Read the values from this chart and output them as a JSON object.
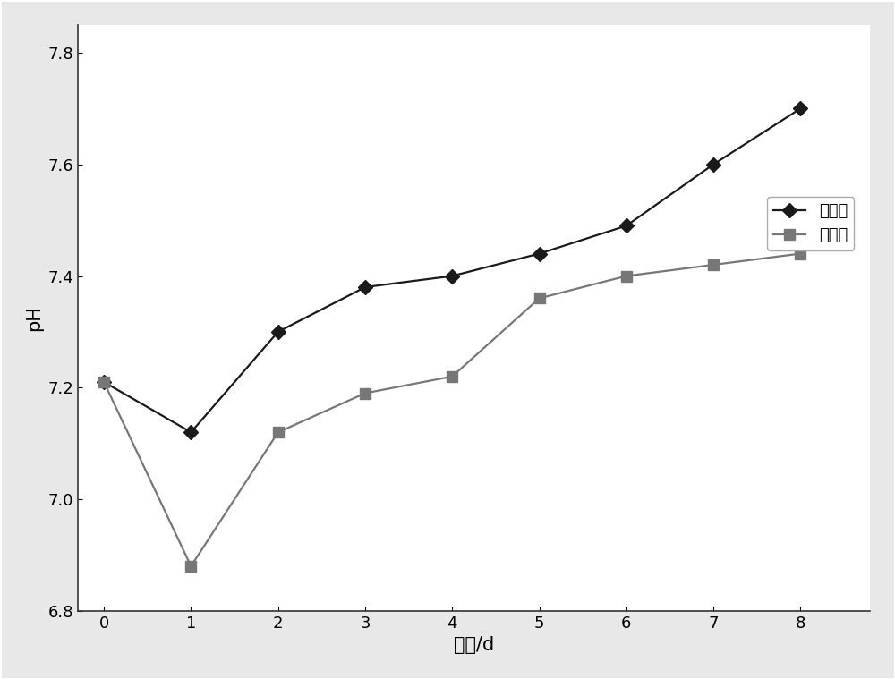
{
  "x": [
    0,
    1,
    2,
    3,
    4,
    5,
    6,
    7,
    8
  ],
  "control_y": [
    7.21,
    7.12,
    7.3,
    7.38,
    7.4,
    7.44,
    7.49,
    7.6,
    7.7
  ],
  "preserve_y": [
    7.21,
    6.88,
    7.12,
    7.19,
    7.22,
    7.36,
    7.4,
    7.42,
    7.44
  ],
  "xlabel": "时间/d",
  "ylabel": "pH",
  "xlim": [
    -0.3,
    8.8
  ],
  "ylim": [
    6.8,
    7.85
  ],
  "yticks": [
    6.8,
    7.0,
    7.2,
    7.4,
    7.6,
    7.8
  ],
  "xticks": [
    0,
    1,
    2,
    3,
    4,
    5,
    6,
    7,
    8
  ],
  "legend_labels": [
    "对照组",
    "保鲜组"
  ],
  "control_color": "#1a1a1a",
  "preserve_color": "#777777",
  "background_color": "#ffffff",
  "outer_background": "#e8e8e8",
  "axis_fontsize": 15,
  "tick_fontsize": 13,
  "legend_fontsize": 13,
  "linewidth": 1.6,
  "marker_size": 8
}
